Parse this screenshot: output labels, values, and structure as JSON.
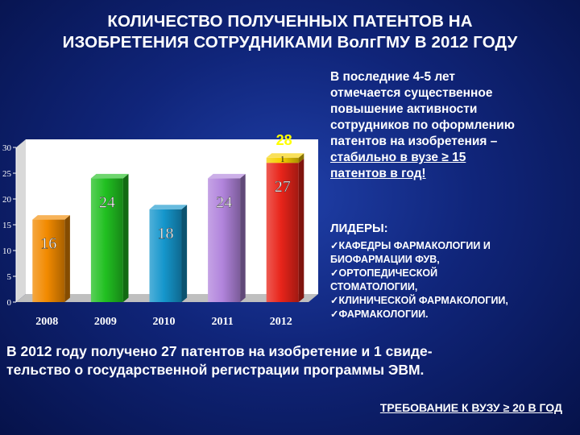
{
  "title": {
    "line1": "КОЛИЧЕСТВО ПОЛУЧЕННЫХ ПАТЕНТОВ НА",
    "line2": "ИЗОБРЕТЕНИЯ СОТРУДНИКАМИ ВолгГМУ В 2012 ГОДУ"
  },
  "side_text": {
    "lines": [
      "В последние 4-5 лет",
      "отмечается существенное",
      "повышение активности",
      "сотрудников по оформлению",
      "патентов на изобретения –"
    ],
    "underlined_lines": [
      "стабильно в вузе  ≥ 15",
      "патентов в год!"
    ]
  },
  "leaders": {
    "heading": "ЛИДЕРЫ:",
    "items": [
      "✓КАФЕДРЫ  ФАРМАКОЛОГИИ И",
      "БИОФАРМАЦИИ ФУВ,",
      "✓ОРТОПЕДИЧЕСКОЙ",
      "СТОМАТОЛОГИИ,",
      "✓КЛИНИЧЕСКОЙ ФАРМАКОЛОГИИ,",
      "✓ФАРМАКОЛОГИИ."
    ]
  },
  "bottom_text": {
    "line1": "В 2012 году получено 27 патентов на изобретение и  1 свиде-",
    "line2": "тельство о государственной регистрации  программы  ЭВМ."
  },
  "requirement": "ТРЕБОВАНИЕ К ВУЗУ  ≥ 20 В ГОД",
  "chart_data": {
    "type": "bar",
    "categories": [
      "2008",
      "2009",
      "2010",
      "2011",
      "2012"
    ],
    "values": [
      16,
      24,
      18,
      24,
      27
    ],
    "stacked_extra": {
      "category": "2012",
      "value": 1,
      "color": "#f5d000"
    },
    "total_label": {
      "category": "2012",
      "text": "28"
    },
    "ylim": [
      0,
      30
    ],
    "yticks": [
      0,
      5,
      10,
      15,
      20,
      25,
      30
    ],
    "grid": false,
    "colors": [
      "#f28a00",
      "#21c021",
      "#1596cc",
      "#b184dc",
      "#e8241a"
    ]
  }
}
